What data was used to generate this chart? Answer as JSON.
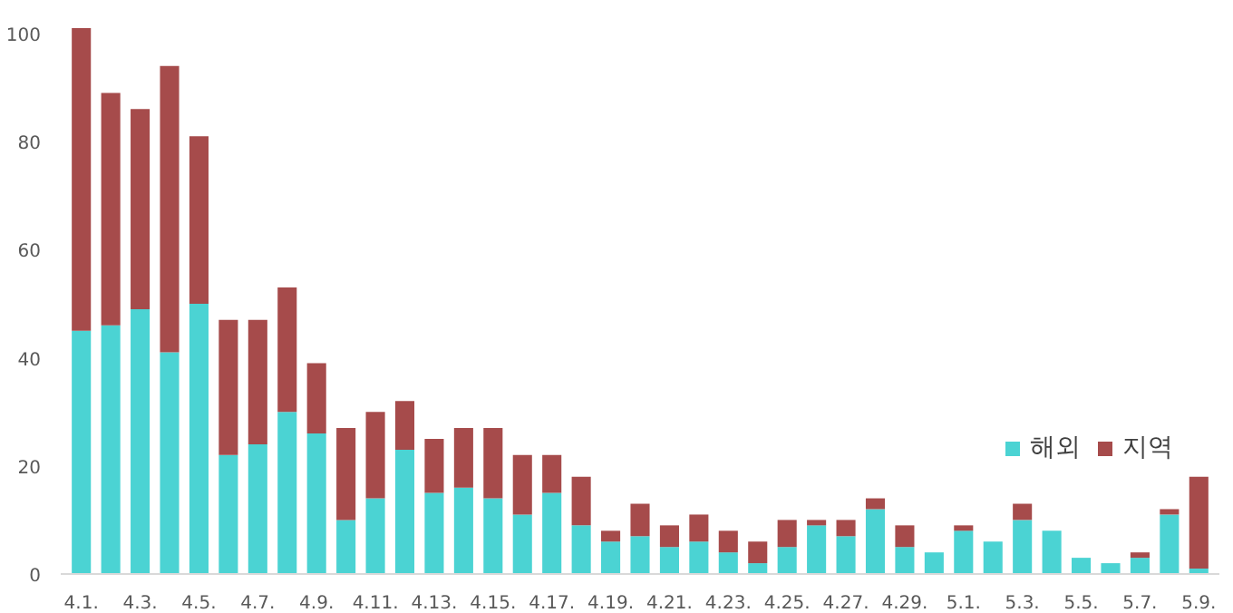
{
  "chart_data": {
    "type": "bar",
    "stacked": true,
    "categories": [
      "4.1.",
      null,
      "4.3.",
      null,
      "4.5.",
      null,
      "4.7.",
      null,
      "4.9.",
      null,
      "4.11.",
      null,
      "4.13.",
      null,
      "4.15.",
      null,
      "4.17.",
      null,
      "4.19.",
      null,
      "4.21.",
      null,
      "4.23.",
      null,
      "4.25.",
      null,
      "4.27.",
      null,
      "4.29.",
      null,
      "5.1.",
      null,
      "5.3.",
      null,
      "5.5.",
      null,
      "5.7.",
      null,
      "5.9."
    ],
    "series": [
      {
        "name": "해외",
        "color": "#4bd3d3",
        "values": [
          45,
          46,
          49,
          41,
          50,
          22,
          24,
          30,
          26,
          10,
          14,
          23,
          15,
          16,
          14,
          11,
          15,
          9,
          6,
          7,
          5,
          6,
          4,
          2,
          5,
          9,
          7,
          12,
          5,
          4,
          8,
          6,
          10,
          8,
          3,
          2,
          3,
          11,
          1
        ]
      },
      {
        "name": "지역",
        "color": "#a64b4b",
        "values": [
          56,
          43,
          37,
          53,
          31,
          25,
          23,
          23,
          13,
          17,
          16,
          9,
          10,
          11,
          13,
          11,
          7,
          9,
          2,
          6,
          4,
          5,
          4,
          4,
          5,
          1,
          3,
          2,
          4,
          0,
          1,
          0,
          3,
          0,
          0,
          0,
          1,
          1,
          17
        ]
      }
    ],
    "ylim": [
      0,
      102
    ],
    "yticks": [
      0,
      20,
      40,
      60,
      80,
      100
    ],
    "grid": false,
    "legend": "right"
  }
}
